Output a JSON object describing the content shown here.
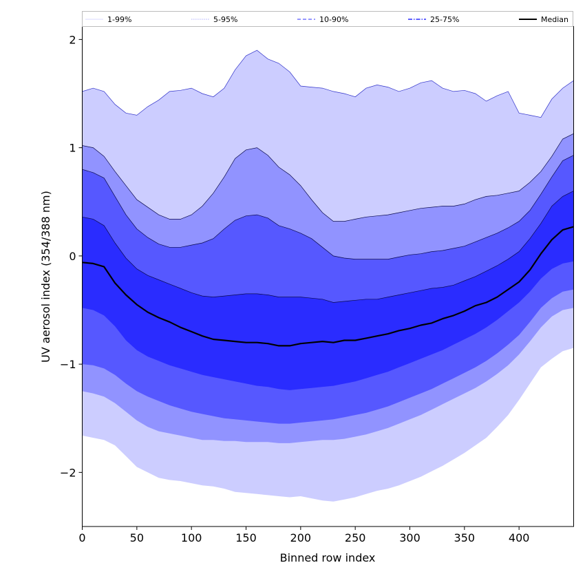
{
  "chart_data": {
    "type": "area",
    "title": "",
    "xlabel": "Binned row index",
    "ylabel": "UV aerosol index (354/388 nm)",
    "xlim": [
      0,
      450
    ],
    "ylim": [
      -2.5,
      2.12
    ],
    "xticks": [
      0,
      50,
      100,
      150,
      200,
      250,
      300,
      350,
      400
    ],
    "xtick_labels": [
      "0",
      "50",
      "100",
      "150",
      "200",
      "250",
      "300",
      "350",
      "400"
    ],
    "yticks": [
      -2,
      -1,
      0,
      1,
      2
    ],
    "ytick_labels": [
      "−2",
      "−1",
      "0",
      "1",
      "2"
    ],
    "grid": false,
    "legend": {
      "placement": "top",
      "entries": [
        {
          "label": "1-99%",
          "color": "#cccdff",
          "style": "solid"
        },
        {
          "label": "5-95%",
          "color": "#9193ff",
          "style": "dotted"
        },
        {
          "label": "10-90%",
          "color": "#5658ff",
          "style": "dashed"
        },
        {
          "label": "25-75%",
          "color": "#2a2cff",
          "style": "dashdot"
        },
        {
          "label": "Median",
          "color": "#000000",
          "style": "solid"
        }
      ]
    },
    "x": [
      0,
      10,
      20,
      30,
      40,
      50,
      60,
      70,
      80,
      90,
      100,
      110,
      120,
      130,
      140,
      150,
      160,
      170,
      180,
      190,
      200,
      210,
      220,
      230,
      240,
      250,
      260,
      270,
      280,
      290,
      300,
      310,
      320,
      330,
      340,
      350,
      360,
      370,
      380,
      390,
      400,
      410,
      420,
      430,
      440,
      450
    ],
    "bands": [
      {
        "name": "1-99%",
        "color": "#cccdff",
        "upper": [
          1.52,
          1.55,
          1.52,
          1.4,
          1.32,
          1.3,
          1.38,
          1.44,
          1.52,
          1.53,
          1.55,
          1.5,
          1.47,
          1.55,
          1.72,
          1.85,
          1.9,
          1.82,
          1.78,
          1.7,
          1.57,
          1.56,
          1.55,
          1.52,
          1.5,
          1.47,
          1.55,
          1.58,
          1.56,
          1.52,
          1.55,
          1.6,
          1.62,
          1.55,
          1.52,
          1.53,
          1.5,
          1.43,
          1.48,
          1.52,
          1.32,
          1.3,
          1.28,
          1.45,
          1.55,
          1.62
        ],
        "lower": [
          -1.66,
          -1.68,
          -1.7,
          -1.75,
          -1.85,
          -1.95,
          -2.0,
          -2.05,
          -2.07,
          -2.08,
          -2.1,
          -2.12,
          -2.13,
          -2.15,
          -2.18,
          -2.19,
          -2.2,
          -2.21,
          -2.22,
          -2.23,
          -2.22,
          -2.24,
          -2.26,
          -2.27,
          -2.25,
          -2.23,
          -2.2,
          -2.17,
          -2.15,
          -2.12,
          -2.08,
          -2.04,
          -1.99,
          -1.94,
          -1.88,
          -1.82,
          -1.75,
          -1.68,
          -1.58,
          -1.47,
          -1.33,
          -1.18,
          -1.03,
          -0.95,
          -0.88,
          -0.85
        ]
      },
      {
        "name": "5-95%",
        "color": "#9193ff",
        "upper": [
          1.02,
          1.0,
          0.92,
          0.78,
          0.65,
          0.52,
          0.45,
          0.38,
          0.34,
          0.34,
          0.38,
          0.46,
          0.58,
          0.73,
          0.9,
          0.98,
          1.0,
          0.93,
          0.82,
          0.75,
          0.65,
          0.52,
          0.4,
          0.32,
          0.32,
          0.34,
          0.36,
          0.37,
          0.38,
          0.4,
          0.42,
          0.44,
          0.45,
          0.46,
          0.46,
          0.48,
          0.52,
          0.55,
          0.56,
          0.58,
          0.6,
          0.68,
          0.78,
          0.92,
          1.08,
          1.13
        ],
        "lower": [
          -1.25,
          -1.27,
          -1.3,
          -1.36,
          -1.44,
          -1.52,
          -1.58,
          -1.62,
          -1.64,
          -1.66,
          -1.68,
          -1.7,
          -1.7,
          -1.71,
          -1.71,
          -1.72,
          -1.72,
          -1.72,
          -1.73,
          -1.73,
          -1.72,
          -1.71,
          -1.7,
          -1.7,
          -1.69,
          -1.67,
          -1.65,
          -1.62,
          -1.59,
          -1.55,
          -1.51,
          -1.47,
          -1.42,
          -1.37,
          -1.32,
          -1.27,
          -1.22,
          -1.16,
          -1.09,
          -1.01,
          -0.91,
          -0.79,
          -0.66,
          -0.56,
          -0.5,
          -0.48
        ]
      },
      {
        "name": "10-90%",
        "color": "#5658ff",
        "upper": [
          0.8,
          0.77,
          0.72,
          0.55,
          0.38,
          0.25,
          0.17,
          0.11,
          0.08,
          0.08,
          0.1,
          0.12,
          0.16,
          0.25,
          0.33,
          0.37,
          0.38,
          0.35,
          0.28,
          0.25,
          0.21,
          0.16,
          0.08,
          0.0,
          -0.02,
          -0.03,
          -0.03,
          -0.03,
          -0.03,
          -0.01,
          0.01,
          0.02,
          0.04,
          0.05,
          0.07,
          0.09,
          0.13,
          0.17,
          0.21,
          0.26,
          0.32,
          0.42,
          0.57,
          0.73,
          0.88,
          0.93
        ],
        "lower": [
          -1.0,
          -1.01,
          -1.04,
          -1.1,
          -1.18,
          -1.25,
          -1.3,
          -1.34,
          -1.38,
          -1.41,
          -1.44,
          -1.46,
          -1.48,
          -1.5,
          -1.51,
          -1.52,
          -1.53,
          -1.54,
          -1.55,
          -1.55,
          -1.54,
          -1.53,
          -1.52,
          -1.51,
          -1.49,
          -1.47,
          -1.45,
          -1.42,
          -1.39,
          -1.35,
          -1.31,
          -1.27,
          -1.23,
          -1.18,
          -1.13,
          -1.08,
          -1.03,
          -0.97,
          -0.9,
          -0.82,
          -0.73,
          -0.61,
          -0.48,
          -0.39,
          -0.33,
          -0.31
        ]
      },
      {
        "name": "25-75%",
        "color": "#2a2cff",
        "upper": [
          0.36,
          0.34,
          0.28,
          0.12,
          -0.02,
          -0.12,
          -0.18,
          -0.22,
          -0.26,
          -0.3,
          -0.34,
          -0.37,
          -0.38,
          -0.37,
          -0.36,
          -0.35,
          -0.35,
          -0.36,
          -0.38,
          -0.38,
          -0.38,
          -0.39,
          -0.4,
          -0.43,
          -0.42,
          -0.41,
          -0.4,
          -0.4,
          -0.38,
          -0.36,
          -0.34,
          -0.32,
          -0.3,
          -0.29,
          -0.27,
          -0.23,
          -0.19,
          -0.14,
          -0.09,
          -0.03,
          0.04,
          0.16,
          0.3,
          0.46,
          0.55,
          0.6
        ],
        "lower": [
          -0.48,
          -0.5,
          -0.55,
          -0.65,
          -0.78,
          -0.87,
          -0.93,
          -0.97,
          -1.01,
          -1.04,
          -1.07,
          -1.1,
          -1.12,
          -1.14,
          -1.16,
          -1.18,
          -1.2,
          -1.21,
          -1.23,
          -1.24,
          -1.23,
          -1.22,
          -1.21,
          -1.2,
          -1.18,
          -1.16,
          -1.13,
          -1.1,
          -1.07,
          -1.03,
          -0.99,
          -0.95,
          -0.91,
          -0.87,
          -0.82,
          -0.77,
          -0.72,
          -0.66,
          -0.59,
          -0.51,
          -0.43,
          -0.33,
          -0.21,
          -0.12,
          -0.07,
          -0.05
        ]
      }
    ],
    "series": [
      {
        "name": "Median",
        "color": "#000000",
        "values": [
          -0.06,
          -0.07,
          -0.1,
          -0.25,
          -0.36,
          -0.45,
          -0.52,
          -0.57,
          -0.61,
          -0.66,
          -0.7,
          -0.74,
          -0.77,
          -0.78,
          -0.79,
          -0.8,
          -0.8,
          -0.81,
          -0.83,
          -0.83,
          -0.81,
          -0.8,
          -0.79,
          -0.8,
          -0.78,
          -0.78,
          -0.76,
          -0.74,
          -0.72,
          -0.69,
          -0.67,
          -0.64,
          -0.62,
          -0.58,
          -0.55,
          -0.51,
          -0.46,
          -0.43,
          -0.38,
          -0.31,
          -0.24,
          -0.13,
          0.02,
          0.15,
          0.24,
          0.27
        ]
      }
    ]
  }
}
